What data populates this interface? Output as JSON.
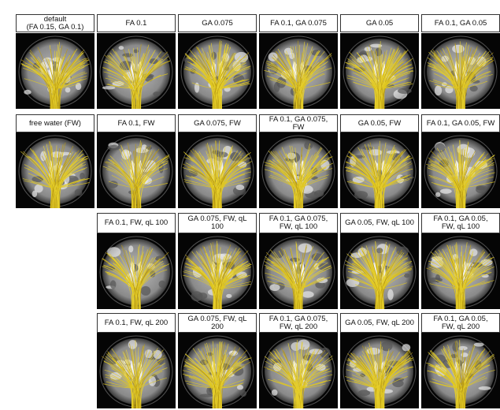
{
  "panels": [
    [
      {
        "label": [
          "default",
          "(FA 0.15, GA 0.1)"
        ]
      },
      {
        "label": [
          "FA 0.1"
        ]
      },
      {
        "label": [
          "GA 0.075"
        ]
      },
      {
        "label": [
          "FA 0.1, GA 0.075"
        ]
      },
      {
        "label": [
          "GA 0.05"
        ]
      },
      {
        "label": [
          "FA 0.1, GA 0.05"
        ]
      }
    ],
    [
      {
        "label": [
          "free water (FW)"
        ]
      },
      {
        "label": [
          "FA 0.1, FW"
        ]
      },
      {
        "label": [
          "GA 0.075, FW"
        ]
      },
      {
        "label": [
          "FA 0.1, GA 0.075,",
          "FW"
        ]
      },
      {
        "label": [
          "GA 0.05, FW"
        ]
      },
      {
        "label": [
          "FA 0.1, GA 0.05, FW"
        ]
      }
    ],
    [
      {
        "label": [
          "FA 0.1, FW, qL 100"
        ]
      },
      {
        "label": [
          "GA 0.075, FW, qL",
          "100"
        ]
      },
      {
        "label": [
          "FA 0.1, GA 0.075,",
          "FW, qL 100"
        ]
      },
      {
        "label": [
          "GA 0.05, FW, qL 100"
        ]
      },
      {
        "label": [
          "FA 0.1, GA 0.05,",
          "FW, qL 100"
        ]
      }
    ],
    [
      {
        "label": [
          "FA 0.1, FW, qL 200"
        ]
      },
      {
        "label": [
          "GA 0.075, FW, qL",
          "200"
        ]
      },
      {
        "label": [
          "FA 0.1, GA 0.075,",
          "FW, qL 200"
        ]
      },
      {
        "label": [
          "GA 0.05, FW, qL 200"
        ]
      },
      {
        "label": [
          "FA 0.1, GA 0.05,",
          "FW, qL 200"
        ]
      }
    ]
  ]
}
